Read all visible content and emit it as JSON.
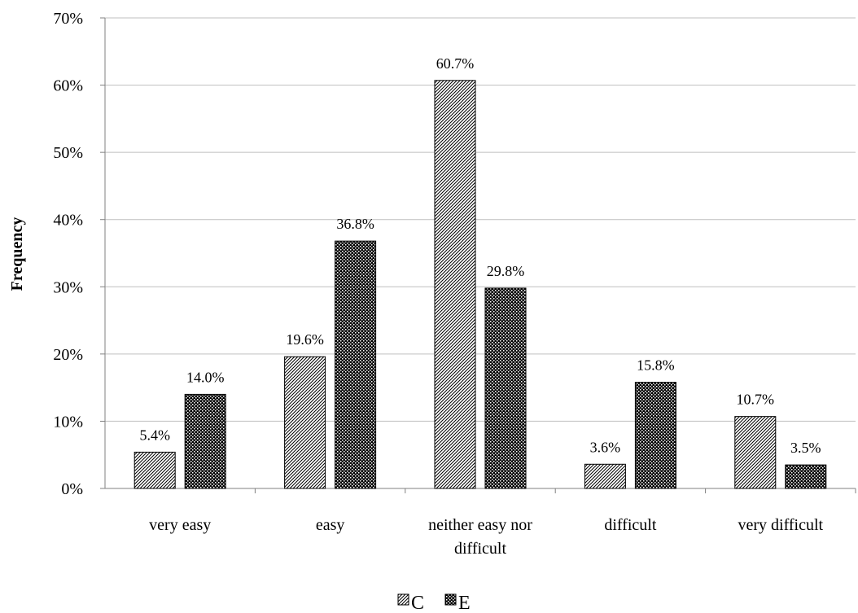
{
  "chart_data": {
    "type": "bar",
    "ylabel": "Frequency",
    "ylim": [
      0,
      70
    ],
    "y_tick_values": [
      0,
      10,
      20,
      30,
      40,
      50,
      60,
      70
    ],
    "y_tick_labels": [
      "0%",
      "10%",
      "20%",
      "30%",
      "40%",
      "50%",
      "60%",
      "70%"
    ],
    "y_unit": "%",
    "grid": "horizontal",
    "legend_position": "bottom",
    "categories": [
      [
        "very easy"
      ],
      [
        "easy"
      ],
      [
        "neither easy nor",
        "difficult"
      ],
      [
        "difficult"
      ],
      [
        "very difficult"
      ]
    ],
    "series": [
      {
        "name": "C",
        "pattern": "diagonal-hatch",
        "values": [
          5.4,
          19.6,
          60.7,
          3.6,
          10.7
        ],
        "labels": [
          "5.4%",
          "19.6%",
          "60.7%",
          "3.6%",
          "10.7%"
        ]
      },
      {
        "name": "E",
        "pattern": "dark-dotted",
        "values": [
          14.0,
          36.8,
          29.8,
          15.8,
          3.5
        ],
        "labels": [
          "14.0%",
          "36.8%",
          "29.8%",
          "15.8%",
          "3.5%"
        ]
      }
    ],
    "colors": {
      "bar_outline": "#000000",
      "gridline": "#bfbfbf",
      "axis": "#808080",
      "c_fill_bg": "#ffffff",
      "e_fill_bg": "#000000"
    }
  }
}
